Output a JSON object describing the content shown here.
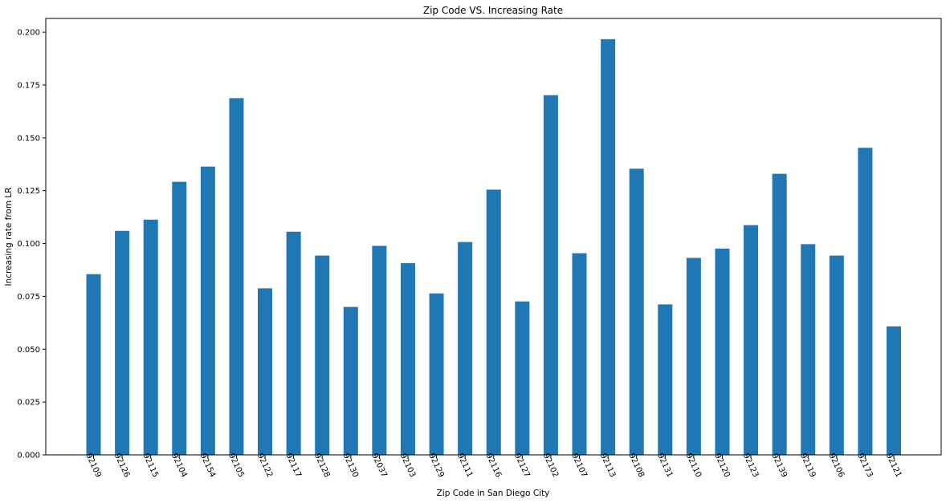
{
  "chart_data": {
    "type": "bar",
    "title": "Zip Code VS. Increasing Rate",
    "xlabel": "Zip Code in San Diego City",
    "ylabel": "Increasing rate from LR",
    "categories": [
      "92109",
      "92126",
      "92115",
      "92104",
      "92154",
      "92105",
      "92122",
      "92117",
      "92128",
      "92130",
      "92037",
      "92103",
      "92129",
      "92111",
      "92116",
      "92127",
      "92102",
      "92107",
      "92113",
      "92108",
      "92131",
      "92110",
      "92120",
      "92123",
      "92139",
      "92119",
      "92106",
      "92173",
      "92121"
    ],
    "values": [
      0.0855,
      0.106,
      0.1113,
      0.1292,
      0.1364,
      0.1688,
      0.0788,
      0.1056,
      0.0943,
      0.07,
      0.0989,
      0.0907,
      0.0764,
      0.1007,
      0.1255,
      0.0726,
      0.1702,
      0.0954,
      0.1967,
      0.1354,
      0.0712,
      0.0932,
      0.0976,
      0.1087,
      0.133,
      0.0997,
      0.0943,
      0.1453,
      0.0608
    ],
    "ylim": [
      0,
      0.2065
    ],
    "yticks": [
      "0.000",
      "0.025",
      "0.050",
      "0.075",
      "0.100",
      "0.125",
      "0.150",
      "0.175",
      "0.200"
    ],
    "bar_color": "#1f77b4",
    "grid": false,
    "legend": "none"
  }
}
